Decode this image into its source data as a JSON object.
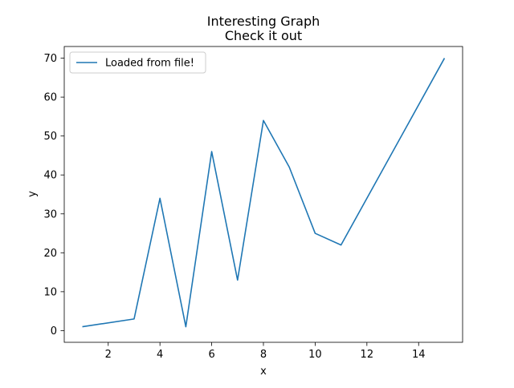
{
  "chart_data": {
    "type": "line",
    "title": "Interesting Graph",
    "subtitle": "Check it out",
    "xlabel": "x",
    "ylabel": "y",
    "xlim": [
      0.3,
      15.7
    ],
    "ylim": [
      -3.0,
      73.0
    ],
    "xticks": [
      2,
      4,
      6,
      8,
      10,
      12,
      14
    ],
    "yticks": [
      0,
      10,
      20,
      30,
      40,
      50,
      60,
      70
    ],
    "grid": false,
    "legend": {
      "position": "top-left"
    },
    "series": [
      {
        "name": "Loaded from file!",
        "color": "#1f77b4",
        "x": [
          1,
          3,
          4,
          5,
          6,
          7,
          8,
          9,
          10,
          11,
          15
        ],
        "y": [
          1,
          3,
          34,
          1,
          46,
          13,
          54,
          42,
          25,
          22,
          70
        ]
      }
    ]
  }
}
